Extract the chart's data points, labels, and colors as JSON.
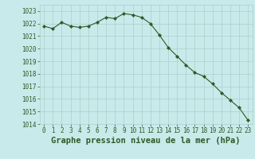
{
  "hours": [
    0,
    1,
    2,
    3,
    4,
    5,
    6,
    7,
    8,
    9,
    10,
    11,
    12,
    13,
    14,
    15,
    16,
    17,
    18,
    19,
    20,
    21,
    22,
    23
  ],
  "pressure": [
    1021.8,
    1021.6,
    1022.1,
    1021.8,
    1021.7,
    1021.8,
    1022.1,
    1022.5,
    1022.4,
    1022.8,
    1022.7,
    1022.5,
    1022.0,
    1021.1,
    1020.1,
    1019.4,
    1018.7,
    1018.1,
    1017.8,
    1017.2,
    1016.5,
    1015.9,
    1015.3,
    1014.3
  ],
  "line_color": "#2d5a27",
  "marker": "D",
  "marker_size": 2.2,
  "line_width": 0.8,
  "background_color": "#c8eaea",
  "grid_color": "#b0cccc",
  "xlabel": "Graphe pression niveau de la mer (hPa)",
  "xlabel_fontsize": 7.5,
  "ylim": [
    1014,
    1023.5
  ],
  "yticks": [
    1014,
    1015,
    1016,
    1017,
    1018,
    1019,
    1020,
    1021,
    1022,
    1023
  ],
  "xticks": [
    0,
    1,
    2,
    3,
    4,
    5,
    6,
    7,
    8,
    9,
    10,
    11,
    12,
    13,
    14,
    15,
    16,
    17,
    18,
    19,
    20,
    21,
    22,
    23
  ],
  "tick_fontsize": 5.5,
  "tick_color": "#2d5a27",
  "xlim": [
    -0.5,
    23.5
  ]
}
